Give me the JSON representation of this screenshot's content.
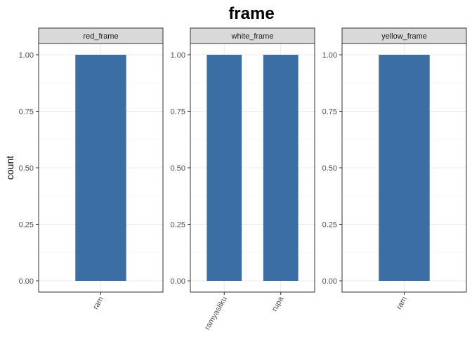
{
  "chart_data": {
    "type": "bar",
    "title": "frame",
    "ylabel": "count",
    "xlabel": "",
    "ylim": [
      0,
      1
    ],
    "y_ticks": [
      "0.00",
      "0.25",
      "0.50",
      "0.75",
      "1.00"
    ],
    "bar_color": "#3a6ea5",
    "strip_color": "#d9d9d9",
    "grid": true,
    "panels": [
      {
        "label": "red_frame",
        "categories": [
          "ram"
        ],
        "values": [
          1
        ]
      },
      {
        "label": "white_frame",
        "categories": [
          "ramyasliku",
          "rupa"
        ],
        "values": [
          1,
          1
        ]
      },
      {
        "label": "yellow_frame",
        "categories": [
          "ram"
        ],
        "values": [
          1
        ]
      }
    ]
  }
}
